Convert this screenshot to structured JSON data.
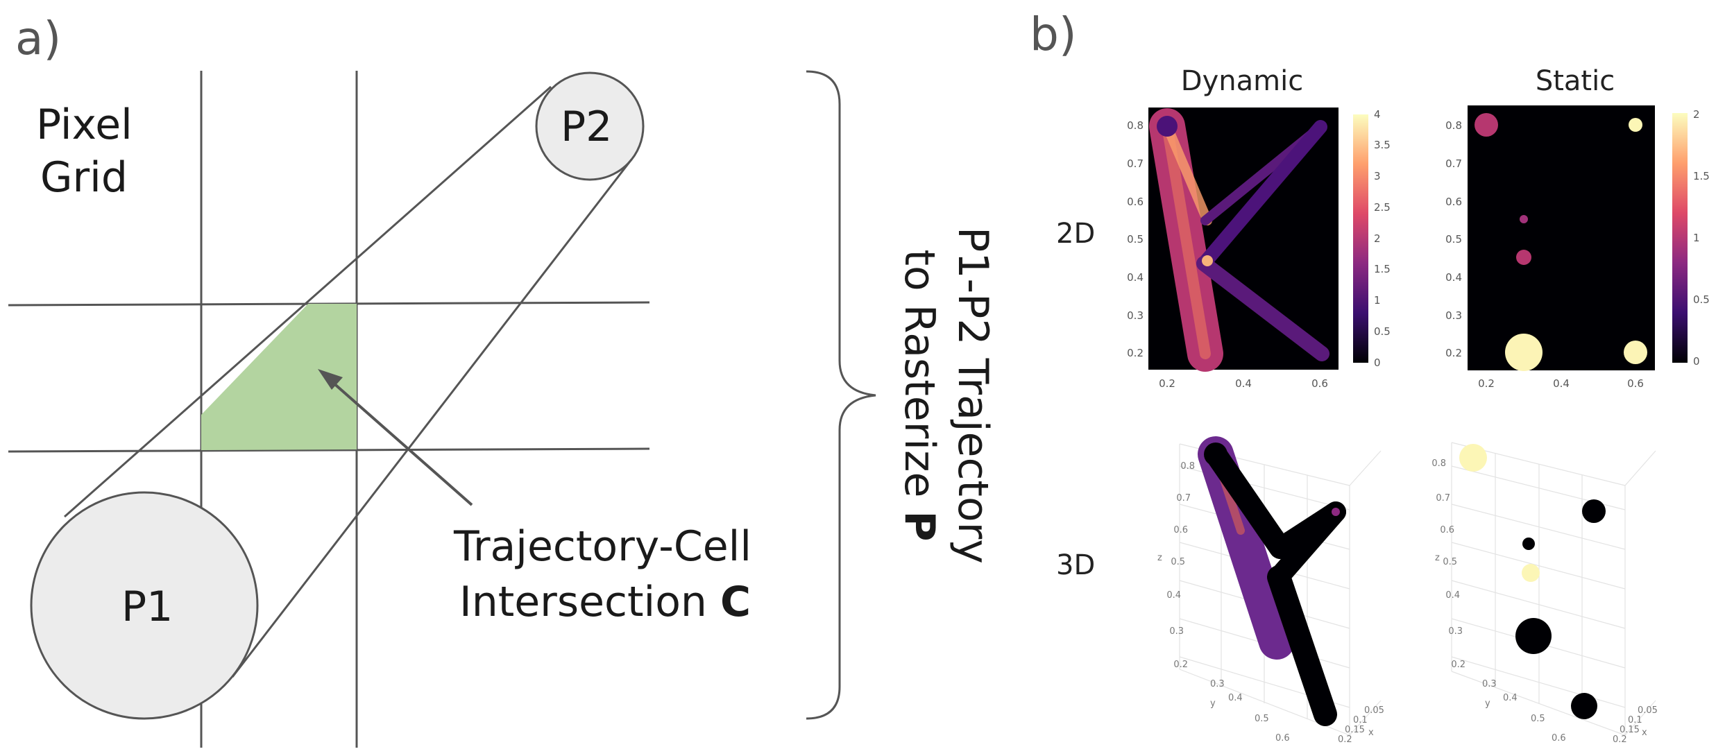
{
  "panel_a": {
    "label": "a)",
    "grid_label_line1": "Pixel",
    "grid_label_line2": "Grid",
    "p1_label": "P1",
    "p2_label": "P2",
    "intersection_line1": "Trajectory-Cell",
    "intersection_line2_prefix": "Intersection ",
    "intersection_symbol": "C",
    "brace_line1": "P1-P2 Trajectory",
    "brace_line2_prefix": "to Rasterize ",
    "brace_symbol": "P",
    "colors": {
      "intersection_fill": "#b3d4a0",
      "circle_fill": "#ececec",
      "stroke": "#555555"
    }
  },
  "panel_b": {
    "label": "b)",
    "col_dynamic": "Dynamic",
    "col_static": "Static",
    "row_2d": "2D",
    "row_3d": "3D",
    "dynamic_2d": {
      "y_ticks": [
        "0.8",
        "0.7",
        "0.6",
        "0.5",
        "0.4",
        "0.3",
        "0.2"
      ],
      "x_ticks": [
        "0.2",
        "0.4",
        "0.6"
      ],
      "colorbar_ticks": [
        "4",
        "3.5",
        "3",
        "2.5",
        "2",
        "1.5",
        "1",
        "0.5",
        "0"
      ]
    },
    "static_2d": {
      "y_ticks": [
        "0.8",
        "0.7",
        "0.6",
        "0.5",
        "0.4",
        "0.3",
        "0.2"
      ],
      "x_ticks": [
        "0.2",
        "0.4",
        "0.6"
      ],
      "colorbar_ticks": [
        "2",
        "1.5",
        "1",
        "0.5",
        "0"
      ]
    },
    "dynamic_3d": {
      "z_ticks": [
        "0.8",
        "0.7",
        "0.6",
        "0.5",
        "0.4",
        "0.3",
        "0.2"
      ],
      "z_axis": "z",
      "y_ticks": [
        "0.3",
        "0.4",
        "0.5",
        "0.6"
      ],
      "y_axis": "y",
      "x_ticks": [
        "0.05",
        "0.1",
        "0.15",
        "0.2"
      ],
      "x_axis": "x"
    },
    "static_3d": {
      "z_ticks": [
        "0.8",
        "0.7",
        "0.6",
        "0.5",
        "0.4",
        "0.3",
        "0.2"
      ],
      "z_axis": "z",
      "y_ticks": [
        "0.3",
        "0.4",
        "0.5",
        "0.6"
      ],
      "y_axis": "y",
      "x_ticks": [
        "0.05",
        "0.1",
        "0.15",
        "0.2"
      ],
      "x_axis": "x"
    },
    "colormap": [
      "#000004",
      "#3b0f70",
      "#8c2981",
      "#de4968",
      "#fe9f6d",
      "#fcfdbf"
    ]
  }
}
